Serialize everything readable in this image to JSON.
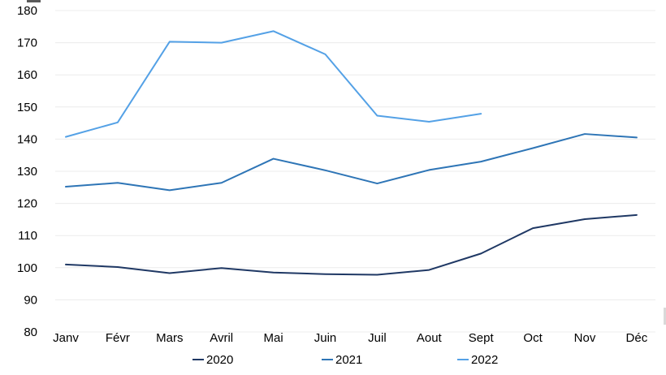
{
  "chart_data": {
    "type": "line",
    "title": "",
    "xlabel": "",
    "ylabel": "",
    "categories": [
      "Janv",
      "Févr",
      "Mars",
      "Avril",
      "Mai",
      "Juin",
      "Juil",
      "Aout",
      "Sept",
      "Oct",
      "Nov",
      "Déc"
    ],
    "series": [
      {
        "name": "2020",
        "color": "#1F3864",
        "values": [
          101.0,
          100.2,
          98.3,
          99.9,
          98.5,
          98.0,
          97.8,
          99.3,
          104.4,
          112.3,
          115.1,
          116.4
        ]
      },
      {
        "name": "2021",
        "color": "#2E75B6",
        "values": [
          125.2,
          126.4,
          124.1,
          126.4,
          133.9,
          130.3,
          126.2,
          130.4,
          133.0,
          137.2,
          141.6,
          140.5
        ]
      },
      {
        "name": "2022",
        "color": "#54A1E6",
        "values": [
          140.7,
          145.2,
          170.3,
          170.0,
          173.6,
          166.4,
          147.3,
          145.4,
          147.9
        ]
      }
    ],
    "ylim": [
      80,
      180
    ],
    "ytick_step": 10,
    "y_ticks": [
      80,
      90,
      100,
      110,
      120,
      130,
      140,
      150,
      160,
      170,
      180
    ],
    "grid": "horizontal-only",
    "gridline_color": "#ECECEC",
    "text_color": "#000000",
    "legend_position": "bottom",
    "legend_labels": [
      "2020",
      "2021",
      "2022"
    ]
  }
}
